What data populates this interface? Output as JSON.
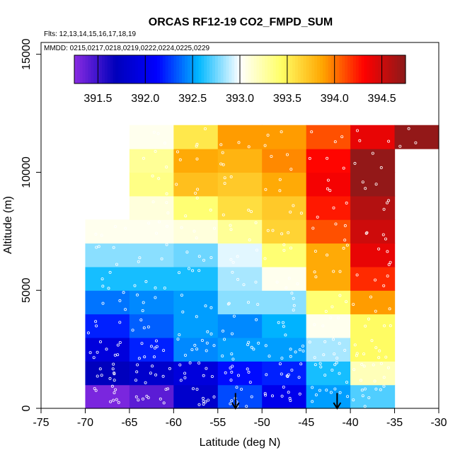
{
  "chart_data": {
    "type": "heatmap",
    "title": "ORCAS RF12-19 CO2_FMPD_SUM",
    "flights_note": "Flts: 12,13,14,15,16,17,18,19",
    "dates_note": "MMDD: 0215,0217,0218,0219,0222,0224,0225,0229",
    "xlabel": "Latitude (deg N)",
    "ylabel": "Altitude (m)",
    "xlim": [
      -75,
      -30
    ],
    "ylim": [
      0,
      15000
    ],
    "x_ticks": [
      "-75",
      "-70",
      "-65",
      "-60",
      "-55",
      "-50",
      "-45",
      "-40",
      "-35",
      "-30"
    ],
    "y_ticks": [
      "0",
      "5000",
      "10000",
      "15000"
    ],
    "colorbar": {
      "range": [
        391.25,
        394.75
      ],
      "tick_labels": [
        "391.5",
        "392.0",
        "392.5",
        "393.0",
        "393.5",
        "394.0",
        "394.5"
      ],
      "tick_values": [
        391.5,
        392.0,
        392.5,
        393.0,
        393.5,
        394.0,
        394.5
      ]
    },
    "lat_bins": [
      -70,
      -65,
      -60,
      -55,
      -50,
      -45,
      -40,
      -35
    ],
    "alt_bins": [
      0,
      1000,
      2000,
      3000,
      4000,
      5000,
      6000,
      7000,
      8000,
      9000,
      10000,
      11000,
      12000
    ],
    "cells": [
      [
        -70,
        0,
        391.3
      ],
      [
        -65,
        0,
        391.4
      ],
      [
        -60,
        0,
        391.8
      ],
      [
        -55,
        0,
        392.3
      ],
      [
        -50,
        0,
        392.0
      ],
      [
        -45,
        0,
        392.5
      ],
      [
        -40,
        0,
        392.7
      ],
      [
        -70,
        1000,
        391.7
      ],
      [
        -65,
        1000,
        391.8
      ],
      [
        -60,
        1000,
        391.9
      ],
      [
        -55,
        1000,
        392.15
      ],
      [
        -50,
        1000,
        392.2
      ],
      [
        -45,
        1000,
        392.6
      ],
      [
        -40,
        1000,
        393.2
      ],
      [
        -70,
        2000,
        391.9
      ],
      [
        -65,
        2000,
        392.2
      ],
      [
        -60,
        2000,
        392.45
      ],
      [
        -55,
        2000,
        392.5
      ],
      [
        -50,
        2000,
        392.5
      ],
      [
        -45,
        2000,
        392.85
      ],
      [
        -40,
        2000,
        393.45
      ],
      [
        -70,
        3000,
        392.2
      ],
      [
        -65,
        3000,
        392.35
      ],
      [
        -60,
        3000,
        392.5
      ],
      [
        -55,
        3000,
        392.45
      ],
      [
        -50,
        3000,
        392.55
      ],
      [
        -45,
        3000,
        393.05
      ],
      [
        -40,
        3000,
        393.45
      ],
      [
        -70,
        4000,
        392.4
      ],
      [
        -65,
        4000,
        392.45
      ],
      [
        -60,
        4000,
        392.5
      ],
      [
        -55,
        4000,
        392.8
      ],
      [
        -50,
        4000,
        392.8
      ],
      [
        -45,
        4000,
        393.4
      ],
      [
        -40,
        4000,
        393.9
      ],
      [
        -70,
        5000,
        392.6
      ],
      [
        -65,
        5000,
        392.6
      ],
      [
        -60,
        5000,
        392.6
      ],
      [
        -55,
        5000,
        392.85
      ],
      [
        -50,
        5000,
        393.05
      ],
      [
        -45,
        5000,
        393.85
      ],
      [
        -40,
        5000,
        394.2
      ],
      [
        -70,
        6000,
        392.8
      ],
      [
        -65,
        6000,
        392.8
      ],
      [
        -60,
        6000,
        392.75
      ],
      [
        -55,
        6000,
        392.95
      ],
      [
        -50,
        6000,
        393.4
      ],
      [
        -45,
        6000,
        393.85
      ],
      [
        -40,
        6000,
        394.4
      ],
      [
        -70,
        7000,
        393.05
      ],
      [
        -65,
        7000,
        393.05
      ],
      [
        -60,
        7000,
        393.1
      ],
      [
        -55,
        7000,
        393.3
      ],
      [
        -50,
        7000,
        393.65
      ],
      [
        -45,
        7000,
        394.1
      ],
      [
        -40,
        7000,
        394.5
      ],
      [
        -65,
        8000,
        393.1
      ],
      [
        -60,
        8000,
        393.4
      ],
      [
        -55,
        8000,
        393.6
      ],
      [
        -50,
        8000,
        393.7
      ],
      [
        -45,
        8000,
        394.25
      ],
      [
        -40,
        8000,
        394.6
      ],
      [
        -65,
        9000,
        393.35
      ],
      [
        -60,
        9000,
        393.75
      ],
      [
        -55,
        9000,
        393.7
      ],
      [
        -50,
        9000,
        393.85
      ],
      [
        -45,
        9000,
        394.35
      ],
      [
        -40,
        9000,
        394.72
      ],
      [
        -65,
        10000,
        393.3
      ],
      [
        -60,
        10000,
        393.85
      ],
      [
        -55,
        10000,
        393.8
      ],
      [
        -50,
        10000,
        393.95
      ],
      [
        -45,
        10000,
        394.3
      ],
      [
        -40,
        10000,
        394.72
      ],
      [
        -65,
        11000,
        393.05
      ],
      [
        -60,
        11000,
        393.55
      ],
      [
        -55,
        11000,
        393.9
      ],
      [
        -50,
        11000,
        393.9
      ],
      [
        -45,
        11000,
        394.1
      ],
      [
        -40,
        11000,
        394.4
      ],
      [
        -35,
        11000,
        394.72
      ]
    ],
    "markers": [
      {
        "type": "arrow-down",
        "lat": -53,
        "alt_top": 650,
        "alt_bottom": 0
      },
      {
        "type": "arrow-down",
        "lat": -41.5,
        "alt_top": 650,
        "alt_bottom": 0
      }
    ]
  },
  "colors": {
    "scale": [
      "#8a2be2",
      "#0000bb",
      "#0000ff",
      "#00b8ff",
      "#ffffff",
      "#ffff66",
      "#ffa500",
      "#ff0000",
      "#8b1a1a"
    ],
    "points": "#ffffff",
    "axis": "#000000"
  }
}
